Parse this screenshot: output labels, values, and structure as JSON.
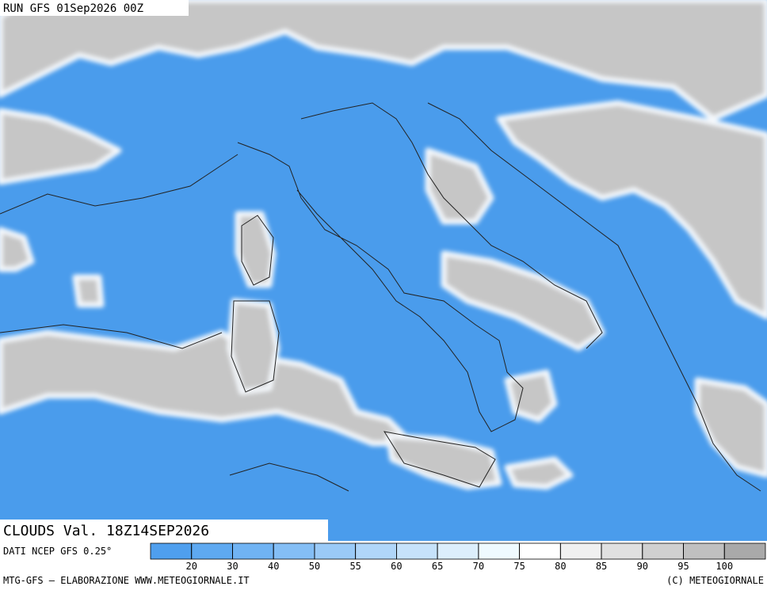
{
  "header": {
    "run": "RUN GFS 01Sep2026 00Z"
  },
  "map": {
    "field": "CLOUDS Val. 18Z14SEP2026",
    "source": "DATI NCEP GFS 0.25°"
  },
  "colorbar": {
    "levels": [
      20,
      30,
      40,
      50,
      55,
      60,
      65,
      70,
      75,
      80,
      85,
      90,
      95,
      100
    ],
    "colors": [
      "#4f9fee",
      "#5ea9f1",
      "#70b3f3",
      "#84bef5",
      "#9acaf7",
      "#b0d6f9",
      "#c6e2fa",
      "#dceefc",
      "#effaff",
      "#ffffff",
      "#f0f0f0",
      "#e0e0e0",
      "#d0d0d0",
      "#c0c0c0",
      "#a9a9a9"
    ]
  },
  "footer": {
    "left": "MTG-GFS — ELABORAZIONE WWW.METEOGIORNALE.IT",
    "right": "(C) METEOGIORNALE"
  }
}
